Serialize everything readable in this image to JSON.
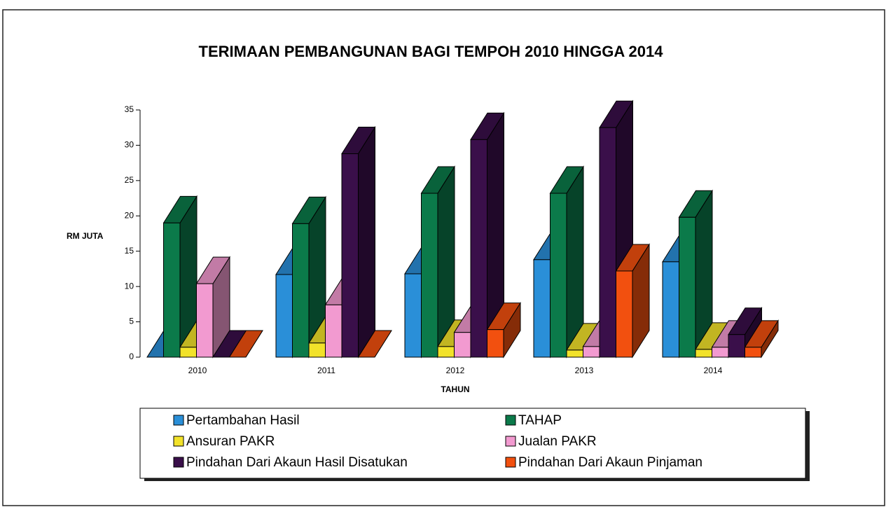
{
  "chart_data": {
    "type": "bar3d",
    "title": "TERIMAAN PEMBANGUNAN BAGI TEMPOH 2010 HINGGA 2014",
    "y_label": "RM JUTA",
    "x_label": "TAHUN",
    "categories": [
      "2010",
      "2011",
      "2012",
      "2013",
      "2014"
    ],
    "ylim": [
      0,
      35
    ],
    "yticks": [
      0,
      5,
      10,
      15,
      20,
      25,
      30,
      35
    ],
    "legend": "bottom",
    "series": [
      {
        "name": "Pertambahan Hasil",
        "color": "#2a8fd8",
        "values": [
          0,
          11.7,
          11.8,
          13.8,
          13.5
        ]
      },
      {
        "name": "TAHAP",
        "color": "#0b7a4a",
        "values": [
          19,
          18.9,
          23.2,
          23.2,
          19.8
        ]
      },
      {
        "name": "Ansuran PAKR",
        "color": "#f2e22a",
        "values": [
          1.4,
          2,
          1.5,
          1,
          1.1
        ]
      },
      {
        "name": "Jualan PAKR",
        "color": "#f29ad0",
        "values": [
          10.4,
          7.4,
          3.5,
          1.5,
          1.4
        ]
      },
      {
        "name": "Pindahan Dari Akaun Hasil Disatukan",
        "color": "#3a0f4a",
        "values": [
          0,
          28.8,
          30.8,
          32.5,
          3.2
        ]
      },
      {
        "name": "Pindahan Dari Akaun Pinjaman",
        "color": "#f2500f",
        "values": [
          0,
          0,
          3.9,
          12.2,
          1.4
        ]
      }
    ]
  }
}
